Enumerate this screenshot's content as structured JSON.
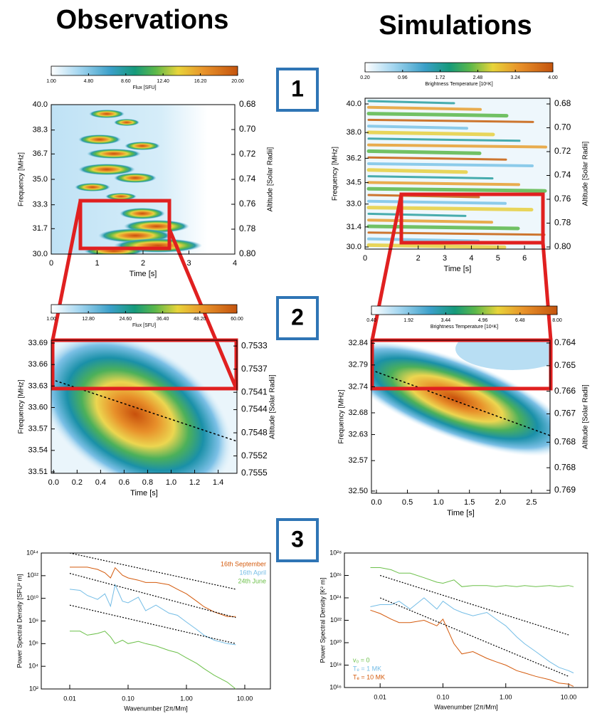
{
  "headings": {
    "left": "Observations",
    "right": "Simulations"
  },
  "step_labels": [
    "1",
    "2",
    "3"
  ],
  "chart_data": [
    {
      "type": "heatmap",
      "xlabel": "Time [s]",
      "ylabel": "Frequency [MHz]",
      "y2label": "Altitude [Solar Radii]",
      "xlim": [
        0,
        4
      ],
      "xticks": [
        0,
        1,
        2,
        3,
        4
      ],
      "ylim": [
        30,
        40
      ],
      "yticks": [
        {
          "value": 40,
          "label": "40.0"
        },
        38.3,
        36.7,
        {
          "value": 35,
          "label": "35.0"
        },
        33.3,
        31.7,
        {
          "value": 30,
          "label": "30.0"
        }
      ],
      "y2lim": [
        0.8,
        0.68
      ],
      "y2ticks": [
        0.68,
        {
          "value": 0.7,
          "label": "0.70"
        },
        0.72,
        0.74,
        0.76,
        0.78,
        {
          "value": 0.8,
          "label": "0.80"
        }
      ],
      "colorbar": {
        "label": "Flux [SFU]",
        "ticks": [
          {
            "value": 1,
            "label": "1.00"
          },
          {
            "value": 4.8,
            "label": "4.80"
          },
          {
            "value": 8.6,
            "label": "8.60"
          },
          {
            "value": 12.4,
            "label": "12.40"
          },
          {
            "value": 16.2,
            "label": "16.20"
          },
          {
            "value": 20,
            "label": "20.00"
          }
        ]
      }
    },
    {
      "type": "heatmap",
      "xlabel": "Time [s]",
      "ylabel": "Frequency [MHz]",
      "y2label": "Altitude [Solar Radii]",
      "xlim": [
        0,
        6.96
      ],
      "xticks": [
        0,
        2,
        3,
        4,
        5,
        6
      ],
      "ylim": [
        29.85,
        40.4
      ],
      "yticks": [
        {
          "value": 40,
          "label": "40.0"
        },
        {
          "value": 38,
          "label": "38.0"
        },
        36.2,
        34.5,
        {
          "value": 33,
          "label": "33.0"
        },
        31.4,
        {
          "value": 30,
          "label": "30.0"
        }
      ],
      "y2lim": [
        0.8018,
        0.6752
      ],
      "y2ticks": [
        0.68,
        {
          "value": 0.7,
          "label": "0.70"
        },
        0.72,
        0.74,
        0.76,
        0.78,
        {
          "value": 0.8,
          "label": "0.80"
        }
      ],
      "colorbar": {
        "label": "Brightness Temperature [10⁶K]",
        "ticks": [
          {
            "value": 0.2,
            "label": "0.20"
          },
          0.96,
          1.72,
          2.48,
          3.24,
          {
            "value": 4,
            "label": "4.00"
          }
        ]
      }
    },
    {
      "type": "heatmap",
      "xlabel": "Time [s]",
      "ylabel": "Frequency [MHz]",
      "y2label": "Altitude [Solar Radii]",
      "xlim": [
        -0.02,
        1.56
      ],
      "xticks": [
        {
          "value": 0,
          "label": "0.0"
        },
        0.2,
        0.4,
        0.6,
        0.8,
        {
          "value": 1,
          "label": "1.0"
        },
        1.2,
        1.4
      ],
      "ylim": [
        33.508,
        33.694
      ],
      "yticks": [
        33.69,
        33.66,
        33.63,
        {
          "value": 33.6,
          "label": "33.60"
        },
        33.57,
        33.54,
        33.51
      ],
      "y2lim": [
        0.7555,
        0.7532
      ],
      "y2ticks": [
        0.7533,
        0.7537,
        0.7541,
        0.7544,
        0.7548,
        0.7552,
        0.7555
      ],
      "colorbar": {
        "label": "Flux [SFU]",
        "ticks": [
          {
            "value": 1,
            "label": "1.00"
          },
          {
            "value": 12.8,
            "label": "12.80"
          },
          {
            "value": 24.6,
            "label": "24.60"
          },
          {
            "value": 36.4,
            "label": "36.40"
          },
          {
            "value": 48.2,
            "label": "48.20"
          },
          {
            "value": 60,
            "label": "60.00"
          }
        ]
      }
    },
    {
      "type": "heatmap",
      "xlabel": "Time [s]",
      "ylabel": "Frequency [MHz]",
      "y2label": "Altitude [Solar Radii]",
      "xlim": [
        -0.08,
        2.8
      ],
      "xticks": [
        {
          "value": 0,
          "label": "0.0"
        },
        0.5,
        {
          "value": 1,
          "label": "1.0"
        },
        1.5,
        {
          "value": 2,
          "label": "2.0"
        },
        2.5
      ],
      "ylim": [
        32.495,
        32.847
      ],
      "yticks": [
        32.84,
        32.79,
        32.74,
        32.68,
        32.63,
        32.57,
        {
          "value": 32.5,
          "label": "32.50"
        }
      ],
      "y2lim": [
        0.7693,
        0.7639
      ],
      "y2ticks": [
        0.764,
        {
          "value": 0.7648,
          "label": "0.765"
        },
        {
          "value": 0.7657,
          "label": "0.766"
        },
        {
          "value": 0.7665,
          "label": "0.767"
        },
        {
          "value": 0.7675,
          "label": "0.768"
        },
        {
          "value": 0.7684,
          "label": "0.768"
        },
        {
          "value": 0.7692,
          "label": "0.769"
        }
      ],
      "colorbar": {
        "label": "Brightness Temperature [10⁶K]",
        "ticks": [
          {
            "value": 0.4,
            "label": "0.40"
          },
          1.92,
          3.44,
          4.96,
          6.48,
          {
            "value": 8,
            "label": "8.00"
          }
        ]
      }
    },
    {
      "type": "line",
      "xscale": "log",
      "yscale": "log",
      "xlabel": "Wavenumber [2π/Mm]",
      "ylabel": "Power Spectral Density [SFU² m]",
      "legend": "upper right",
      "xlim": [
        0.00325,
        27.5
      ],
      "xticks": [
        0.01,
        {
          "value": 0.1,
          "label": "0.10"
        },
        {
          "value": 1,
          "label": "1.00"
        },
        {
          "value": 10,
          "label": "10.00"
        }
      ],
      "ylim": [
        100,
        100000000000000.0
      ],
      "yticks": [
        {
          "value": 100000000000000.0,
          "label": "10¹⁴"
        },
        {
          "value": 1000000000000.0,
          "label": "10¹²"
        },
        {
          "value": 10000000000.0,
          "label": "10¹⁰"
        },
        {
          "value": 100000000.0,
          "label": "10⁸"
        },
        {
          "value": 1000000.0,
          "label": "10⁶"
        },
        {
          "value": 10000.0,
          "label": "10⁴"
        },
        {
          "value": 100,
          "label": "10²"
        }
      ],
      "x": [
        0.01,
        0.015,
        0.02,
        0.03,
        0.04,
        0.05,
        0.06,
        0.08,
        0.1,
        0.15,
        0.2,
        0.3,
        0.5,
        0.7,
        1,
        1.5,
        2,
        3,
        5,
        7
      ],
      "series": [
        {
          "name": "16th September",
          "color": "#d45a0c",
          "values": [
            5600000000000.0,
            5600000000000.0,
            5600000000000.0,
            3600000000000.0,
            1800000000000.0,
            630000000000.0,
            5000000000000.0,
            1100000000000.0,
            630000000000.0,
            400000000000.0,
            250000000000.0,
            250000000000.0,
            160000000000.0,
            63000000000.0,
            25000000000.0,
            5600000000.0,
            1800000000.0,
            630000000.0,
            250000000.0,
            250000000.0
          ]
        },
        {
          "name": "16th April",
          "color": "#74bde6",
          "values": [
            63000000000.0,
            50000000000.0,
            18000000000.0,
            8000000000.0,
            25000000000.0,
            2000000000.0,
            160000000000.0,
            5600000000.0,
            4000000000.0,
            12600000000.0,
            800000000.0,
            2500000000.0,
            500000000.0,
            320000000.0,
            80000000.0,
            18000000.0,
            5600000.0,
            2000000.0,
            1000000.0,
            800000.0
          ]
        },
        {
          "name": "24th June",
          "color": "#6cc04a",
          "values": [
            12600000.0,
            12600000.0,
            5600000.0,
            8000000.0,
            12600000.0,
            4000000.0,
            1000000.0,
            2000000.0,
            1000000.0,
            1600000.0,
            1000000.0,
            630000.0,
            250000.0,
            160000.0,
            56000.0,
            18000.0,
            6300,
            1600,
            400,
            100
          ]
        },
        {
          "color": "#000000",
          "dash": true,
          "x": [
            0.01,
            7
          ],
          "values": [
            100000000000000.0,
            63000000000.0
          ]
        },
        {
          "color": "#000000",
          "dash": true,
          "x": [
            0.01,
            7
          ],
          "values": [
            1600000000000.0,
            200000000.0
          ]
        },
        {
          "color": "#000000",
          "dash": true,
          "x": [
            0.01,
            7
          ],
          "values": [
            2500000000.0,
            1000000.0
          ]
        }
      ]
    },
    {
      "type": "line",
      "xscale": "log",
      "yscale": "log",
      "xlabel": "Wavenumber [2π/Mm]",
      "ylabel": "Power Spectral Density [K² m]",
      "legend": "lower left",
      "xlim": [
        0.0027,
        20.2
      ],
      "xticks": [
        0.01,
        {
          "value": 0.1,
          "label": "0.10"
        },
        {
          "value": 1,
          "label": "1.00"
        },
        {
          "value": 10,
          "label": "10.00"
        }
      ],
      "ylim": [
        1e+16,
        1e+28
      ],
      "yticks": [
        {
          "value": 1e+28,
          "label": "10²⁸"
        },
        {
          "value": 1e+26,
          "label": "10²⁶"
        },
        {
          "value": 1e+24,
          "label": "10²⁴"
        },
        {
          "value": 1e+22,
          "label": "10²²"
        },
        {
          "value": 1e+20,
          "label": "10²⁰"
        },
        {
          "value": 1e+18,
          "label": "10¹⁸"
        },
        {
          "value": 1e+16,
          "label": "10¹⁶"
        }
      ],
      "x": [
        0.007,
        0.01,
        0.015,
        0.02,
        0.03,
        0.05,
        0.08,
        0.1,
        0.15,
        0.2,
        0.3,
        0.5,
        0.7,
        1,
        1.5,
        2,
        3,
        5,
        7,
        10,
        12
      ],
      "series": [
        {
          "name": "v₀ = 0",
          "color": "#6cc04a",
          "values": [
            5e+26,
            5e+26,
            3.2e+26,
            1.6e+26,
            1.6e+26,
            6.3e+25,
            2.5e+25,
            2e+25,
            4e+25,
            1e+25,
            1.26e+25,
            1.26e+25,
            1e+25,
            1.26e+25,
            1e+25,
            1.26e+25,
            1e+25,
            1.26e+25,
            1e+25,
            1.26e+25,
            1e+25
          ]
        },
        {
          "name": "Tₑ = 1 MK",
          "color": "#74bde6",
          "values": [
            1.6e+23,
            2.5e+23,
            2.5e+23,
            5e+23,
            1e+23,
            1e+24,
            1e+23,
            5e+23,
            1e+23,
            5e+22,
            2.5e+22,
            5e+22,
            1.26e+22,
            3.2e+21,
            3.2e+20,
            8e+19,
            1.6e+19,
            2e+18,
            6.3e+17,
            3.2e+17,
            2e+17
          ]
        },
        {
          "name": "Tₑ = 10 MK",
          "color": "#d45a0c",
          "values": [
            8e+22,
            4e+22,
            1.26e+22,
            6.3e+21,
            6.3e+21,
            1e+22,
            3.2e+21,
            1.26e+22,
            8e+19,
            1e+19,
            1.6e+19,
            4e+18,
            2e+18,
            1e+18,
            3.2e+17,
            2e+17,
            1e+17,
            5e+16,
            2.5e+16,
            2e+16,
            1.26e+16
          ]
        },
        {
          "color": "#000000",
          "dash": true,
          "x": [
            0.01,
            10
          ],
          "values": [
            1e+26,
            5e+20
          ]
        },
        {
          "color": "#000000",
          "dash": true,
          "x": [
            0.01,
            10
          ],
          "values": [
            1e+24,
            1e+17
          ]
        }
      ]
    }
  ]
}
